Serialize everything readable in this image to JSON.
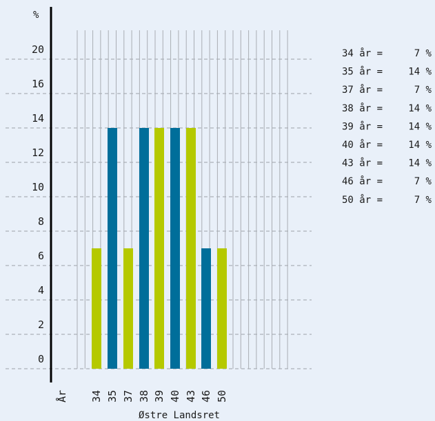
{
  "chart_data": {
    "type": "bar",
    "title": "",
    "ylabel": "%",
    "xlabel": "Østre Landsret",
    "x_prefix_label": "År",
    "categories": [
      "34",
      "35",
      "37",
      "38",
      "39",
      "40",
      "43",
      "46",
      "50"
    ],
    "values": [
      7,
      14,
      7,
      14,
      14,
      14,
      14,
      7,
      7
    ],
    "bar_colors": [
      "#b5c900",
      "#006e9a",
      "#b5c900",
      "#006e9a",
      "#b5c900",
      "#006e9a",
      "#b5c900",
      "#006e9a",
      "#b5c900"
    ],
    "yticks": [
      {
        "value": 0,
        "label": "0"
      },
      {
        "value": 2,
        "label": "2"
      },
      {
        "value": 4,
        "label": "4"
      },
      {
        "value": 6,
        "label": "6"
      },
      {
        "value": 8,
        "label": "8"
      },
      {
        "value": 10,
        "label": "10"
      },
      {
        "value": 12,
        "label": "12"
      },
      {
        "value": 14,
        "label": "14"
      },
      {
        "value": 16,
        "label": "16"
      },
      {
        "value": 20,
        "label": "20"
      }
    ],
    "grid": true,
    "legend_position": "right",
    "legend": [
      {
        "year": "34 år =",
        "pct": "7 %"
      },
      {
        "year": "35 år =",
        "pct": "14 %"
      },
      {
        "year": "37 år =",
        "pct": "7 %"
      },
      {
        "year": "38 år =",
        "pct": "14 %"
      },
      {
        "year": "39 år =",
        "pct": "14 %"
      },
      {
        "year": "40 år =",
        "pct": "14 %"
      },
      {
        "year": "43 år =",
        "pct": "14 %"
      },
      {
        "year": "46 år =",
        "pct": "7 %"
      },
      {
        "year": "50 år =",
        "pct": "7 %"
      }
    ]
  },
  "colors": {
    "background": "#e9f0f9",
    "green": "#b5c900",
    "blue": "#006e9a",
    "gridline": "#9aa0a8",
    "column_line": "#a9adb3",
    "axis": "#000000"
  }
}
